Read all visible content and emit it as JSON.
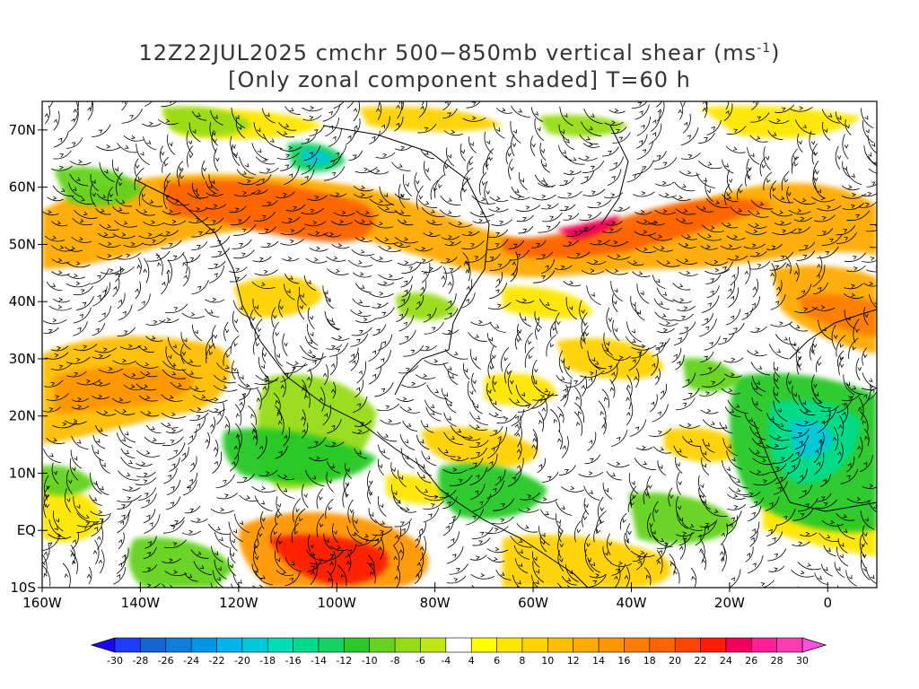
{
  "title": {
    "line1_prefix": "12Z22JUL2025 cmchr 500−850mb vertical shear (ms",
    "line1_sup": "-1",
    "line1_suffix": ")",
    "line2": "[Only zonal component shaded] T=60 h"
  },
  "map": {
    "lat_labels": [
      "70N",
      "60N",
      "50N",
      "40N",
      "30N",
      "20N",
      "10N",
      "EQ",
      "10S"
    ],
    "lon_labels": [
      "160W",
      "140W",
      "120W",
      "100W",
      "80W",
      "60W",
      "40W",
      "20W",
      "0"
    ],
    "lat_values": [
      70,
      60,
      50,
      40,
      30,
      20,
      10,
      0,
      -10
    ],
    "lon_values": [
      -160,
      -140,
      -120,
      -100,
      -80,
      -60,
      -40,
      -20,
      0
    ],
    "lat_range": [
      -10,
      75
    ],
    "lon_range": [
      -160,
      10
    ]
  },
  "colorbar": {
    "labels": [
      "-30",
      "-28",
      "-26",
      "-24",
      "-22",
      "-20",
      "-18",
      "-16",
      "-14",
      "-12",
      "-10",
      "-8",
      "-6",
      "-4",
      "4",
      "6",
      "8",
      "10",
      "12",
      "14",
      "16",
      "18",
      "20",
      "22",
      "24",
      "26",
      "28",
      "30"
    ],
    "colors": [
      "#1e3cff",
      "#1464d2",
      "#0f7ddc",
      "#0096e6",
      "#00b4f0",
      "#00c8dc",
      "#00dcb4",
      "#00dc8c",
      "#14d264",
      "#28c828",
      "#64d21e",
      "#96dc14",
      "#bee614",
      "#ffffff",
      "#ffff00",
      "#ffe600",
      "#ffd200",
      "#ffbe00",
      "#ffaa00",
      "#ff9600",
      "#ff7d00",
      "#ff6400",
      "#ff4600",
      "#ff1e00",
      "#f0005a",
      "#ff1e96",
      "#ff3cb4"
    ],
    "under_color": "#1e00ff",
    "over_color": "#ff50dc"
  }
}
